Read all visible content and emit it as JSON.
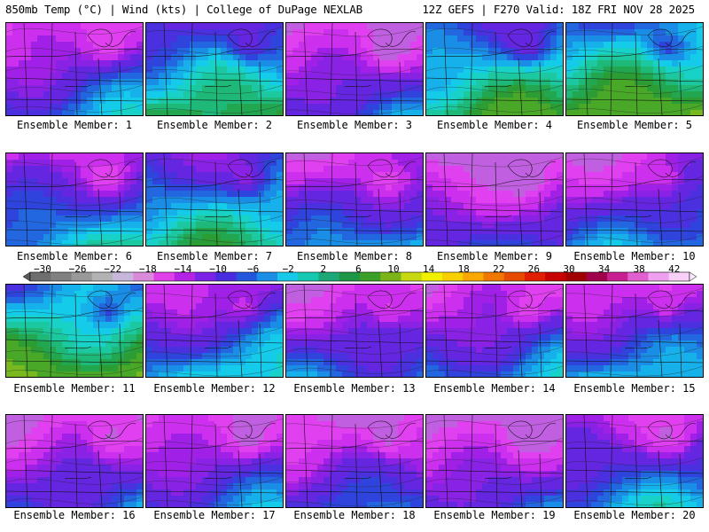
{
  "header": {
    "left": "850mb Temp (°C) | Wind (kts) | College of DuPage NEXLAB",
    "right": "12Z GEFS | F270 Valid: 18Z FRI NOV 28 2025"
  },
  "members": [
    {
      "label": "Ensemble Member: 1",
      "base_temp": -9
    },
    {
      "label": "Ensemble Member: 2",
      "base_temp": -3
    },
    {
      "label": "Ensemble Member: 3",
      "base_temp": -11
    },
    {
      "label": "Ensemble Member: 4",
      "base_temp": -2
    },
    {
      "label": "Ensemble Member: 5",
      "base_temp": 0
    },
    {
      "label": "Ensemble Member: 6",
      "base_temp": -7
    },
    {
      "label": "Ensemble Member: 7",
      "base_temp": -4
    },
    {
      "label": "Ensemble Member: 8",
      "base_temp": -9
    },
    {
      "label": "Ensemble Member: 9",
      "base_temp": -12
    },
    {
      "label": "Ensemble Member: 10",
      "base_temp": -9
    },
    {
      "label": "Ensemble Member: 11",
      "base_temp": 0
    },
    {
      "label": "Ensemble Member: 12",
      "base_temp": -7
    },
    {
      "label": "Ensemble Member: 13",
      "base_temp": -10
    },
    {
      "label": "Ensemble Member: 14",
      "base_temp": -9
    },
    {
      "label": "Ensemble Member: 15",
      "base_temp": -8
    },
    {
      "label": "Ensemble Member: 16",
      "base_temp": -11
    },
    {
      "label": "Ensemble Member: 17",
      "base_temp": -10
    },
    {
      "label": "Ensemble Member: 18",
      "base_temp": -11
    },
    {
      "label": "Ensemble Member: 19",
      "base_temp": -12
    },
    {
      "label": "Ensemble Member: 20",
      "base_temp": -8
    }
  ],
  "colorbar": {
    "ticks": [
      "−30",
      "−26",
      "−22",
      "−18",
      "−14",
      "−10",
      "−6",
      "−2",
      "2",
      "6",
      "10",
      "14",
      "18",
      "22",
      "26",
      "30",
      "34",
      "38",
      "42"
    ],
    "colors": [
      "#6e6e6e",
      "#808080",
      "#999999",
      "#b3b3b3",
      "#c8b7dc",
      "#d98ad9",
      "#e040e8",
      "#b422e6",
      "#7a22e6",
      "#4a2ce0",
      "#2356dc",
      "#1a8ee6",
      "#18c8e8",
      "#16c8b0",
      "#1aa878",
      "#1e9646",
      "#3aa028",
      "#7ab418",
      "#c8d810",
      "#f0f000",
      "#f8d000",
      "#f8a800",
      "#f07800",
      "#e84a00",
      "#e01e00",
      "#c80000",
      "#a00000",
      "#a0004a",
      "#c82090",
      "#e060d0",
      "#f0a0f0",
      "#f8d0f8"
    ]
  }
}
